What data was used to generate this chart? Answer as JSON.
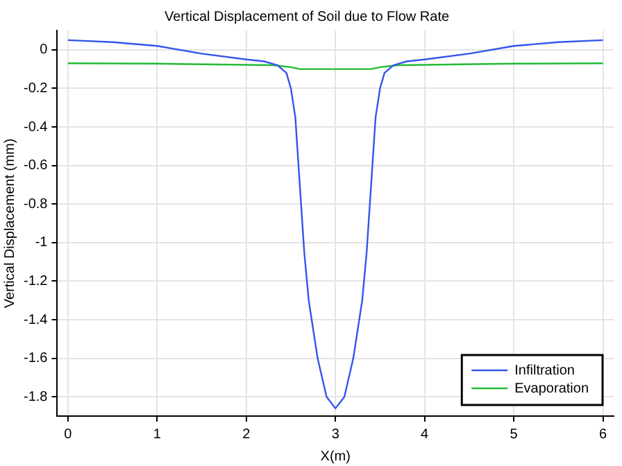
{
  "chart_data": {
    "type": "line",
    "title": "Vertical Displacement of Soil due to Flow Rate",
    "xlabel": "X(m)",
    "ylabel": "Vertical Displacement (mm)",
    "xlim": [
      -0.12,
      6.12
    ],
    "xticks": [
      0,
      1,
      2,
      3,
      4,
      5,
      6
    ],
    "ylim": [
      -1.9,
      0.1
    ],
    "yticks": [
      0,
      -0.2,
      -0.4,
      -0.6,
      -0.8,
      -1,
      -1.2,
      -1.4,
      -1.6,
      -1.8
    ],
    "grid": true,
    "legend": "bottom right",
    "marker": "none",
    "line_style": "solid",
    "series": [
      {
        "name": "Infiltration",
        "color": "#3355ee",
        "x": [
          0,
          0.5,
          1,
          1.5,
          2,
          2.2,
          2.35,
          2.45,
          2.5,
          2.55,
          2.6,
          2.65,
          2.7,
          2.8,
          2.9,
          3,
          3.1,
          3.2,
          3.3,
          3.35,
          3.4,
          3.45,
          3.5,
          3.55,
          3.65,
          3.8,
          4,
          4.5,
          5,
          5.5,
          6
        ],
        "values": [
          0.05,
          0.04,
          0.02,
          -0.02,
          -0.05,
          -0.06,
          -0.08,
          -0.12,
          -0.2,
          -0.35,
          -0.7,
          -1.05,
          -1.3,
          -1.6,
          -1.8,
          -1.86,
          -1.8,
          -1.6,
          -1.3,
          -1.05,
          -0.7,
          -0.35,
          -0.2,
          -0.12,
          -0.08,
          -0.06,
          -0.05,
          -0.02,
          0.02,
          0.04,
          0.05
        ]
      },
      {
        "name": "Evaporation",
        "color": "#22bb33",
        "x": [
          0,
          1,
          2,
          2.3,
          2.5,
          2.6,
          3,
          3.4,
          3.5,
          3.7,
          4,
          5,
          6
        ],
        "values": [
          -0.07,
          -0.072,
          -0.078,
          -0.08,
          -0.09,
          -0.1,
          -0.1,
          -0.1,
          -0.09,
          -0.08,
          -0.078,
          -0.072,
          -0.07
        ]
      }
    ]
  }
}
